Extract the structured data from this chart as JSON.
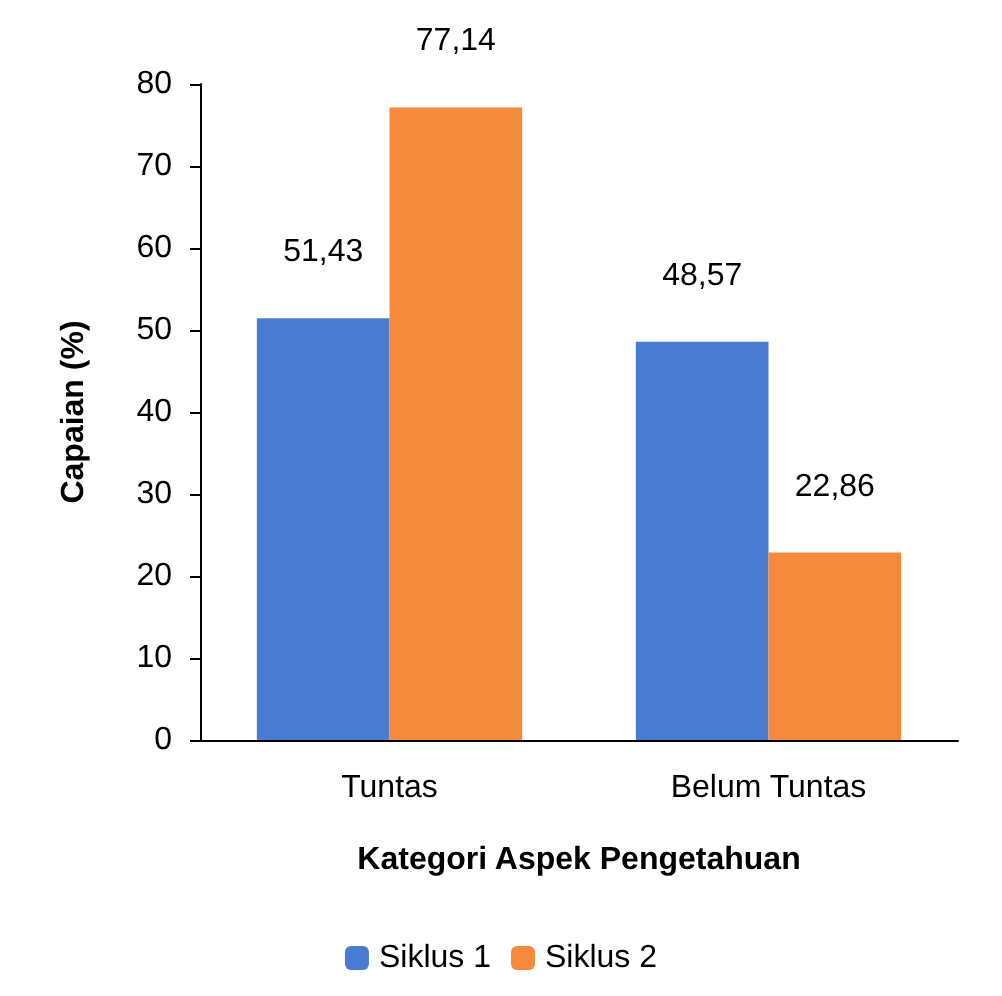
{
  "chart_data": {
    "type": "bar",
    "xlabel": "Kategori Aspek Pengetahuan",
    "ylabel": "Capaian (%)",
    "categories": [
      "Tuntas",
      "Belum Tuntas"
    ],
    "series": [
      {
        "name": "Siklus 1",
        "color": "#4a7bd3",
        "values": [
          51.43,
          48.57
        ],
        "value_labels": [
          "51,43",
          "48,57"
        ]
      },
      {
        "name": "Siklus 2",
        "color": "#f58a3b",
        "values": [
          77.14,
          22.86
        ],
        "value_labels": [
          "77,14",
          "22,86"
        ]
      }
    ],
    "ylim": [
      0,
      80
    ],
    "yticks": [
      0,
      10,
      20,
      30,
      40,
      50,
      60,
      70,
      80
    ],
    "grid": false,
    "legend": "bottom"
  }
}
